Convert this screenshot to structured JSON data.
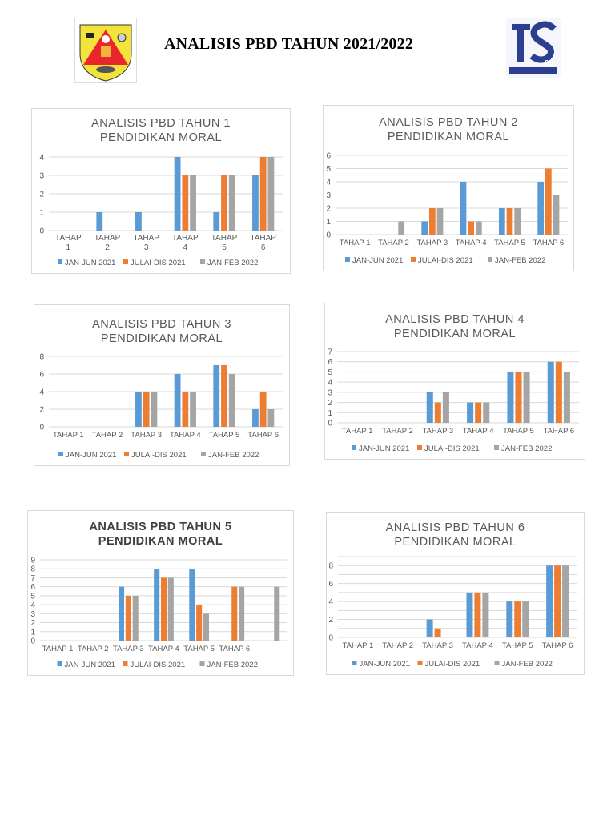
{
  "header": {
    "title": "ANALISIS PBD TAHUN 2021/2022",
    "left_logo": "school-crest-logo",
    "right_logo": "ts25-logo"
  },
  "colors": {
    "JAN-JUN 2021": "#5b9bd5",
    "JULAI-DIS 2021": "#ed7d31",
    "JAN-FEB 2022": "#a5a5a5"
  },
  "chart_data": [
    {
      "type": "bar",
      "title": "ANALISIS PBD TAHUN 1 PENDIDIKAN MORAL",
      "title_lines": [
        "ANALISIS PBD TAHUN 1",
        "PENDIDIKAN MORAL"
      ],
      "categories": [
        "TAHAP 1",
        "TAHAP 2",
        "TAHAP 3",
        "TAHAP 4",
        "TAHAP 5",
        "TAHAP 6"
      ],
      "series": [
        {
          "name": "JAN-JUN 2021",
          "values": [
            0,
            1,
            1,
            4,
            1,
            3
          ]
        },
        {
          "name": "JULAI-DIS 2021",
          "values": [
            0,
            0,
            0,
            3,
            3,
            4
          ]
        },
        {
          "name": "JAN-FEB 2022",
          "values": [
            0,
            0,
            0,
            3,
            3,
            4
          ]
        }
      ],
      "ylim": [
        0,
        4
      ],
      "yticks": [
        0,
        1,
        2,
        3,
        4
      ],
      "grid": true,
      "legend": "bottom"
    },
    {
      "type": "bar",
      "title": "ANALISIS PBD TAHUN 2 PENDIDIKAN MORAL",
      "title_lines": [
        "ANALISIS PBD TAHUN 2",
        "PENDIDIKAN MORAL"
      ],
      "categories": [
        "TAHAP 1",
        "TAHAP 2",
        "TAHAP 3",
        "TAHAP 4",
        "TAHAP 5",
        "TAHAP 6"
      ],
      "series": [
        {
          "name": "JAN-JUN 2021",
          "values": [
            0,
            0,
            1,
            4,
            2,
            4
          ]
        },
        {
          "name": "JULAI-DIS 2021",
          "values": [
            0,
            0,
            2,
            1,
            2,
            5
          ]
        },
        {
          "name": "JAN-FEB 2022",
          "values": [
            0,
            1,
            2,
            1,
            2,
            3
          ]
        }
      ],
      "ylim": [
        0,
        6
      ],
      "yticks": [
        0,
        1,
        2,
        3,
        4,
        5,
        6
      ],
      "grid": true,
      "legend": "bottom"
    },
    {
      "type": "bar",
      "title": "ANALISIS PBD TAHUN 3 PENDIDIKAN MORAL",
      "title_lines": [
        "ANALISIS PBD TAHUN 3",
        "PENDIDIKAN MORAL"
      ],
      "categories": [
        "TAHAP 1",
        "TAHAP 2",
        "TAHAP 3",
        "TAHAP 4",
        "TAHAP 5",
        "TAHAP 6"
      ],
      "series": [
        {
          "name": "JAN-JUN 2021",
          "values": [
            0,
            0,
            4,
            6,
            7,
            2
          ]
        },
        {
          "name": "JULAI-DIS 2021",
          "values": [
            0,
            0,
            4,
            4,
            7,
            4
          ]
        },
        {
          "name": "JAN-FEB 2022",
          "values": [
            0,
            0,
            4,
            4,
            6,
            2
          ]
        }
      ],
      "ylim": [
        0,
        8
      ],
      "yticks": [
        0,
        2,
        4,
        6,
        8
      ],
      "grid": true,
      "legend": "bottom"
    },
    {
      "type": "bar",
      "title": "ANALISIS PBD TAHUN 4 PENDIDIKAN MORAL",
      "title_lines": [
        "ANALISIS PBD TAHUN 4",
        "PENDIDIKAN MORAL"
      ],
      "categories": [
        "TAHAP 1",
        "TAHAP 2",
        "TAHAP 3",
        "TAHAP 4",
        "TAHAP 5",
        "TAHAP 6"
      ],
      "series": [
        {
          "name": "JAN-JUN 2021",
          "values": [
            0,
            0,
            3,
            2,
            5,
            6
          ]
        },
        {
          "name": "JULAI-DIS 2021",
          "values": [
            0,
            0,
            2,
            2,
            5,
            6
          ]
        },
        {
          "name": "JAN-FEB 2022",
          "values": [
            0,
            0,
            3,
            2,
            5,
            5
          ]
        }
      ],
      "ylim": [
        0,
        7
      ],
      "yticks": [
        0,
        1,
        2,
        3,
        4,
        5,
        6,
        7
      ],
      "grid": true,
      "legend": "bottom"
    },
    {
      "type": "bar",
      "title": "ANALISIS PBD TAHUN 5 PENDIDIKAN MORAL",
      "title_lines": [
        "ANALISIS PBD TAHUN 5",
        "PENDIDIKAN MORAL"
      ],
      "categories": [
        "TAHAP 1",
        "TAHAP 2",
        "TAHAP 3",
        "TAHAP 4",
        "TAHAP 5",
        "TAHAP 6",
        ""
      ],
      "series": [
        {
          "name": "JAN-JUN 2021",
          "values": [
            0,
            0,
            6,
            8,
            8,
            0,
            0
          ]
        },
        {
          "name": "JULAI-DIS 2021",
          "values": [
            0,
            0,
            5,
            7,
            4,
            6,
            0
          ]
        },
        {
          "name": "JAN-FEB 2022",
          "values": [
            0,
            0,
            5,
            7,
            3,
            6,
            6
          ]
        }
      ],
      "ylim": [
        0,
        9
      ],
      "yticks": [
        0,
        1,
        2,
        3,
        4,
        5,
        6,
        7,
        8,
        9
      ],
      "grid": true,
      "legend": "bottom"
    },
    {
      "type": "bar",
      "title": "ANALISIS PBD TAHUN 6 PENDIDIKAN MORAL",
      "title_lines": [
        "ANALISIS PBD TAHUN 6",
        "PENDIDIKAN MORAL"
      ],
      "categories": [
        "TAHAP 1",
        "TAHAP 2",
        "TAHAP 3",
        "TAHAP 4",
        "TAHAP 5",
        "TAHAP 6"
      ],
      "series": [
        {
          "name": "JAN-JUN 2021",
          "values": [
            0,
            0,
            2,
            5,
            4,
            8
          ]
        },
        {
          "name": "JULAI-DIS 2021",
          "values": [
            0,
            0,
            1,
            5,
            4,
            8
          ]
        },
        {
          "name": "JAN-FEB 2022",
          "values": [
            0,
            0,
            0,
            5,
            4,
            8
          ]
        }
      ],
      "ylim": [
        0,
        9
      ],
      "yticks": [
        0,
        2,
        4,
        6,
        8
      ],
      "grid": true,
      "legend": "bottom"
    }
  ]
}
